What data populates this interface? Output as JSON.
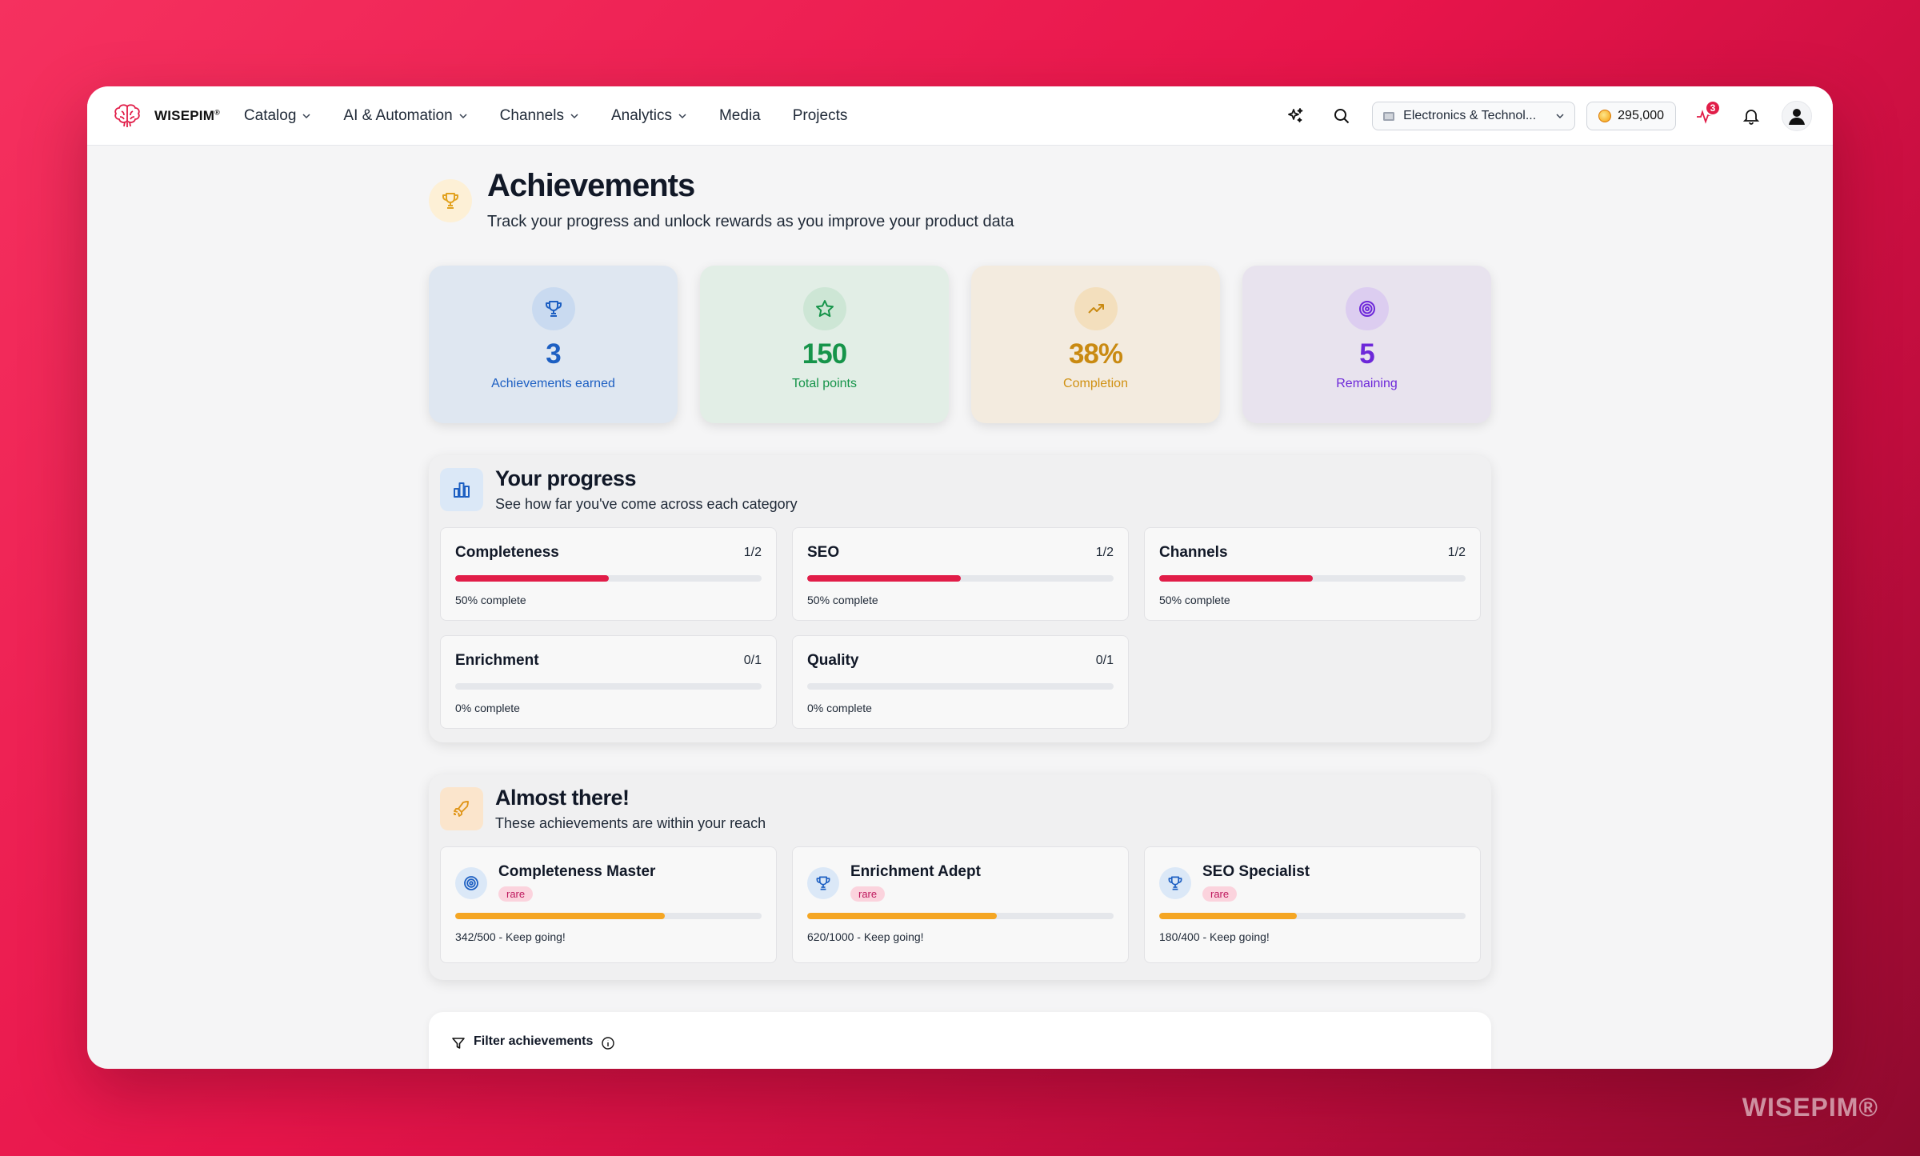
{
  "nav": {
    "brand": "WISEPIM",
    "brand_mark": "®",
    "links": [
      {
        "label": "Catalog",
        "dropdown": true
      },
      {
        "label": "AI & Automation",
        "dropdown": true
      },
      {
        "label": "Channels",
        "dropdown": true
      },
      {
        "label": "Analytics",
        "dropdown": true
      },
      {
        "label": "Media",
        "dropdown": false
      },
      {
        "label": "Projects",
        "dropdown": false
      }
    ],
    "workspace": "Electronics & Technol...",
    "credits": "295,000",
    "activity_badge": "3"
  },
  "page": {
    "title": "Achievements",
    "subtitle": "Track your progress and unlock rewards as you improve your product data"
  },
  "stats": [
    {
      "value": "3",
      "label": "Achievements earned",
      "icon": "trophy-icon",
      "color": "#1d5fc2",
      "bg": "#dfe7f1",
      "icon_bg": "#c9daf0"
    },
    {
      "value": "150",
      "label": "Total points",
      "icon": "star-icon",
      "color": "#16944a",
      "bg": "#e2eee6",
      "icon_bg": "#cde6d5"
    },
    {
      "value": "38%",
      "label": "Completion",
      "icon": "trending-up-icon",
      "color": "#c98a12",
      "bg": "#f3ebdf",
      "icon_bg": "#f3dfbd"
    },
    {
      "value": "5",
      "label": "Remaining",
      "icon": "target-icon",
      "color": "#6d28d9",
      "bg": "#e8e3ee",
      "icon_bg": "#dccdf0"
    }
  ],
  "progress": {
    "title": "Your progress",
    "subtitle": "See how far you've come across each category",
    "categories": [
      {
        "name": "Completeness",
        "fraction": "1/2",
        "percent": 50,
        "label": "50% complete"
      },
      {
        "name": "SEO",
        "fraction": "1/2",
        "percent": 50,
        "label": "50% complete"
      },
      {
        "name": "Channels",
        "fraction": "1/2",
        "percent": 50,
        "label": "50% complete"
      },
      {
        "name": "Enrichment",
        "fraction": "0/1",
        "percent": 0,
        "label": "0% complete"
      },
      {
        "name": "Quality",
        "fraction": "0/1",
        "percent": 0,
        "label": "0% complete"
      }
    ]
  },
  "almost": {
    "title": "Almost there!",
    "subtitle": "These achievements are within your reach",
    "items": [
      {
        "name": "Completeness Master",
        "rarity": "rare",
        "current": 342,
        "target": 500,
        "label": "342/500 - Keep going!",
        "icon": "target-icon"
      },
      {
        "name": "Enrichment Adept",
        "rarity": "rare",
        "current": 620,
        "target": 1000,
        "label": "620/1000 - Keep going!",
        "icon": "trophy-icon"
      },
      {
        "name": "SEO Specialist",
        "rarity": "rare",
        "current": 180,
        "target": 400,
        "label": "180/400 - Keep going!",
        "icon": "trophy-icon"
      }
    ]
  },
  "filter": {
    "label": "Filter achievements"
  },
  "watermark": "WISEPIM®"
}
